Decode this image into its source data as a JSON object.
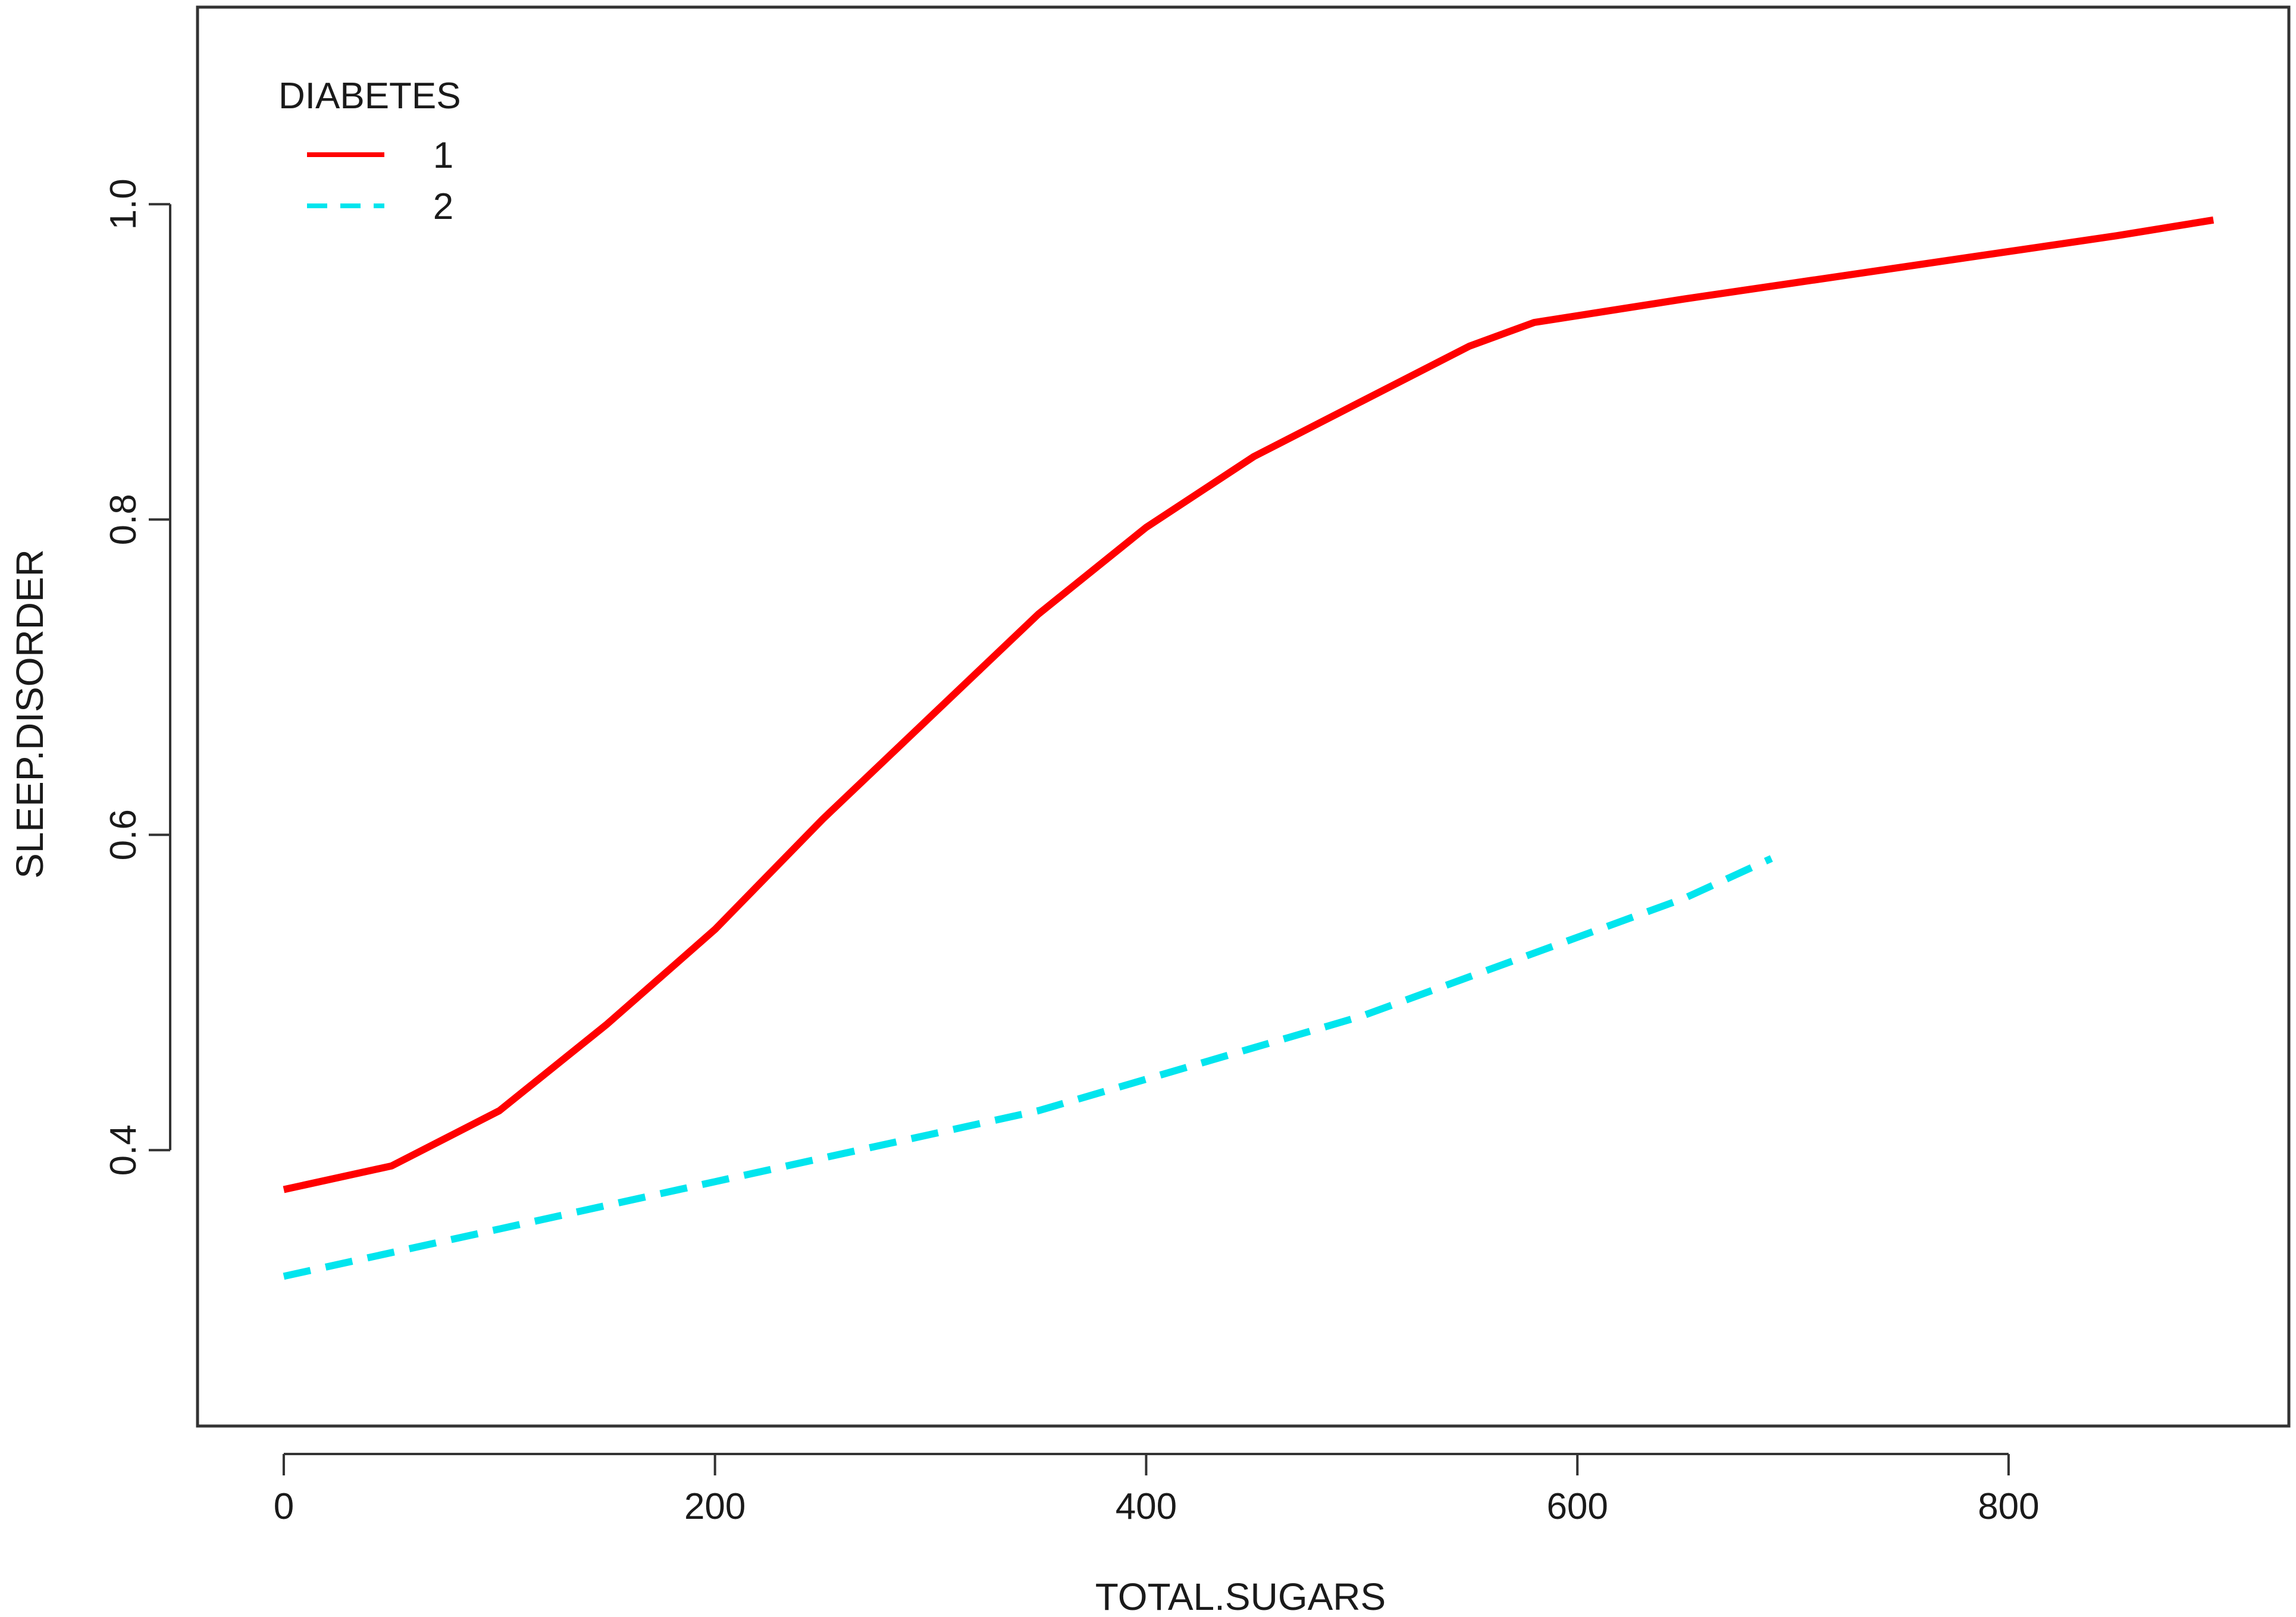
{
  "chart_data": {
    "type": "line",
    "title": "",
    "xlabel": "TOTAL.SUGARS",
    "ylabel": "SLEEP.DISORDER",
    "xlim": [
      -40,
      930
    ],
    "ylim": [
      0.225,
      1.125
    ],
    "x_ticks": [
      0,
      200,
      400,
      600,
      800
    ],
    "x_tick_labels": [
      "0",
      "200",
      "400",
      "600",
      "800"
    ],
    "y_ticks": [
      0.4,
      0.6,
      0.8,
      1.0
    ],
    "y_tick_labels": [
      "0.4",
      "0.6",
      "0.8",
      "1.0"
    ],
    "grid": false,
    "legend": {
      "title": "DIABETES",
      "position": "top-left"
    },
    "series": [
      {
        "name": "1",
        "color": "#ff0000",
        "line_style": "solid",
        "x": [
          0,
          50,
          100,
          150,
          200,
          250,
          300,
          350,
          400,
          450,
          500,
          550,
          580,
          650,
          700,
          750,
          800,
          850,
          895
        ],
        "y": [
          0.375,
          0.39,
          0.425,
          0.48,
          0.54,
          0.61,
          0.675,
          0.74,
          0.795,
          0.84,
          0.875,
          0.91,
          0.925,
          0.94,
          0.95,
          0.96,
          0.97,
          0.98,
          0.99
        ]
      },
      {
        "name": "2",
        "color": "#00e5ee",
        "line_style": "dashed",
        "x": [
          0,
          50,
          100,
          150,
          200,
          250,
          300,
          350,
          400,
          450,
          500,
          550,
          600,
          650,
          690
        ],
        "y": [
          0.32,
          0.335,
          0.35,
          0.365,
          0.38,
          0.395,
          0.41,
          0.425,
          0.445,
          0.465,
          0.485,
          0.51,
          0.535,
          0.56,
          0.585
        ]
      }
    ]
  }
}
